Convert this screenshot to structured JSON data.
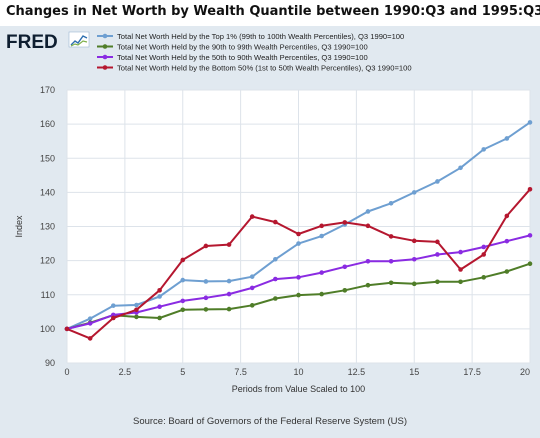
{
  "logo": {
    "text": "FRED"
  },
  "colors": {
    "background": "#e1e9f0",
    "plot_background": "#ffffff",
    "gridline": "#dde3ea"
  },
  "chart_data": {
    "type": "line",
    "title": "Changes in Net Worth by Wealth Quantile between 1990:Q3 and 1995:Q3",
    "xlabel": "Periods from Value Scaled to 100",
    "ylabel": "Index",
    "xlim": [
      0,
      20
    ],
    "ylim": [
      90,
      170
    ],
    "x_ticks": [
      0,
      2.5,
      5,
      7.5,
      10,
      12.5,
      15,
      17.5,
      20
    ],
    "x_tick_labels": [
      "0",
      "2.5",
      "5",
      "7.5",
      "10",
      "12.5",
      "15",
      "17.5",
      "20"
    ],
    "y_ticks": [
      90,
      100,
      110,
      120,
      130,
      140,
      150,
      160,
      170
    ],
    "y_tick_labels": [
      "90",
      "100",
      "110",
      "120",
      "130",
      "140",
      "150",
      "160",
      "170"
    ],
    "grid": true,
    "legend_position": "top-left",
    "source": "Source: Board of Governors of the Federal Reserve System (US)",
    "x": [
      0,
      1,
      2,
      3,
      4,
      5,
      6,
      7,
      8,
      9,
      10,
      11,
      12,
      13,
      14,
      15,
      16,
      17,
      18,
      19,
      20
    ],
    "series": [
      {
        "name": "Total Net Worth Held by the Top 1% (99th to 100th Wealth Percentiles), Q3 1990=100",
        "color": "#6e9fd1",
        "values": [
          100,
          103,
          106.8,
          107,
          109.5,
          114.3,
          113.9,
          114,
          115.3,
          120.4,
          125,
          127.2,
          130.6,
          134.4,
          136.8,
          140,
          143.2,
          147.2,
          152.6,
          155.8,
          160.5
        ]
      },
      {
        "name": "Total Net Worth Held by the 90th to 99th Wealth Percentiles, Q3 1990=100",
        "color": "#4f7d28",
        "values": [
          100,
          101.8,
          104,
          103.5,
          103.2,
          105.6,
          105.7,
          105.8,
          106.9,
          108.9,
          109.9,
          110.2,
          111.3,
          112.8,
          113.5,
          113.2,
          113.8,
          113.8,
          115.1,
          116.8,
          119.1
        ]
      },
      {
        "name": "Total Net Worth Held by the 50th to 90th Wealth Percentiles, Q3 1990=100",
        "color": "#8a2be2",
        "values": [
          100,
          101.6,
          104.1,
          104.8,
          106.5,
          108.2,
          109.1,
          110.2,
          112,
          114.6,
          115.1,
          116.5,
          118.2,
          119.8,
          119.8,
          120.4,
          121.8,
          122.5,
          124,
          125.7,
          127.4
        ]
      },
      {
        "name": "Total Net Worth Held by the Bottom 50% (1st to 50th Wealth Percentiles), Q3 1990=100",
        "color": "#b5172f",
        "values": [
          100,
          97.2,
          103.2,
          105.6,
          111.3,
          120.2,
          124.3,
          124.7,
          132.9,
          131.3,
          127.8,
          130.2,
          131.2,
          130.2,
          127.1,
          125.8,
          125.5,
          117.4,
          121.8,
          133.1,
          140.9
        ]
      }
    ]
  }
}
